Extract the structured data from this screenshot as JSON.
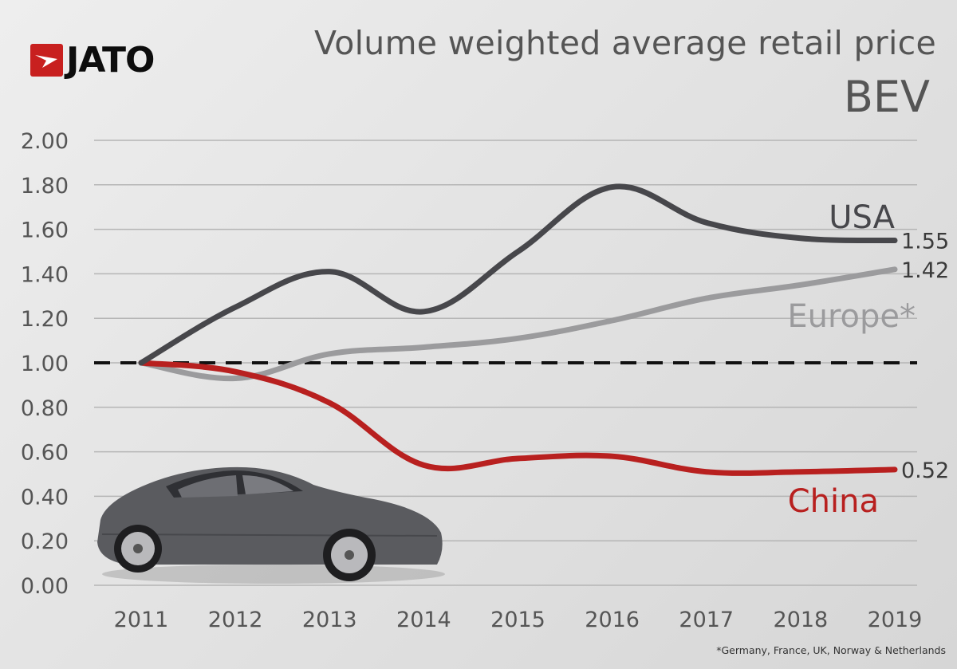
{
  "brand": {
    "logo_text": "JATO",
    "color": "#c8201f"
  },
  "header": {
    "title": "Volume weighted average retail price",
    "subtitle": "BEV"
  },
  "footnote": "*Germany, France, UK, Norway & Netherlands",
  "image": {
    "subject": "car-illustration"
  },
  "chart_data": {
    "type": "line",
    "title": "Volume weighted average retail price",
    "subtitle": "BEV",
    "xlabel": "",
    "ylabel": "",
    "x": [
      "2011",
      "2012",
      "2013",
      "2014",
      "2015",
      "2016",
      "2017",
      "2018",
      "2019"
    ],
    "ylim": [
      0,
      2
    ],
    "yticks": [
      "0.00",
      "0.20",
      "0.40",
      "0.60",
      "0.80",
      "1.00",
      "1.20",
      "1.40",
      "1.60",
      "1.80",
      "2.00"
    ],
    "grid": true,
    "reference_line": {
      "value": 1.0,
      "style": "dashed",
      "color": "#111111"
    },
    "series": [
      {
        "name": "USA",
        "label": "USA",
        "color": "#47474b",
        "label_color": "#47474b",
        "end_label": "1.55",
        "values": [
          1.0,
          1.25,
          1.41,
          1.23,
          1.5,
          1.79,
          1.63,
          1.56,
          1.55
        ]
      },
      {
        "name": "Europe*",
        "label": "Europe*",
        "color": "#9b9b9d",
        "label_color": "#9b9b9d",
        "end_label": "1.42",
        "values": [
          1.0,
          0.93,
          1.04,
          1.07,
          1.11,
          1.19,
          1.29,
          1.35,
          1.42
        ]
      },
      {
        "name": "China",
        "label": "China",
        "color": "#b8201f",
        "label_color": "#b8201f",
        "end_label": "0.52",
        "values": [
          1.0,
          0.96,
          0.82,
          0.54,
          0.57,
          0.58,
          0.51,
          0.51,
          0.52
        ]
      }
    ],
    "legend": "inline-right"
  }
}
